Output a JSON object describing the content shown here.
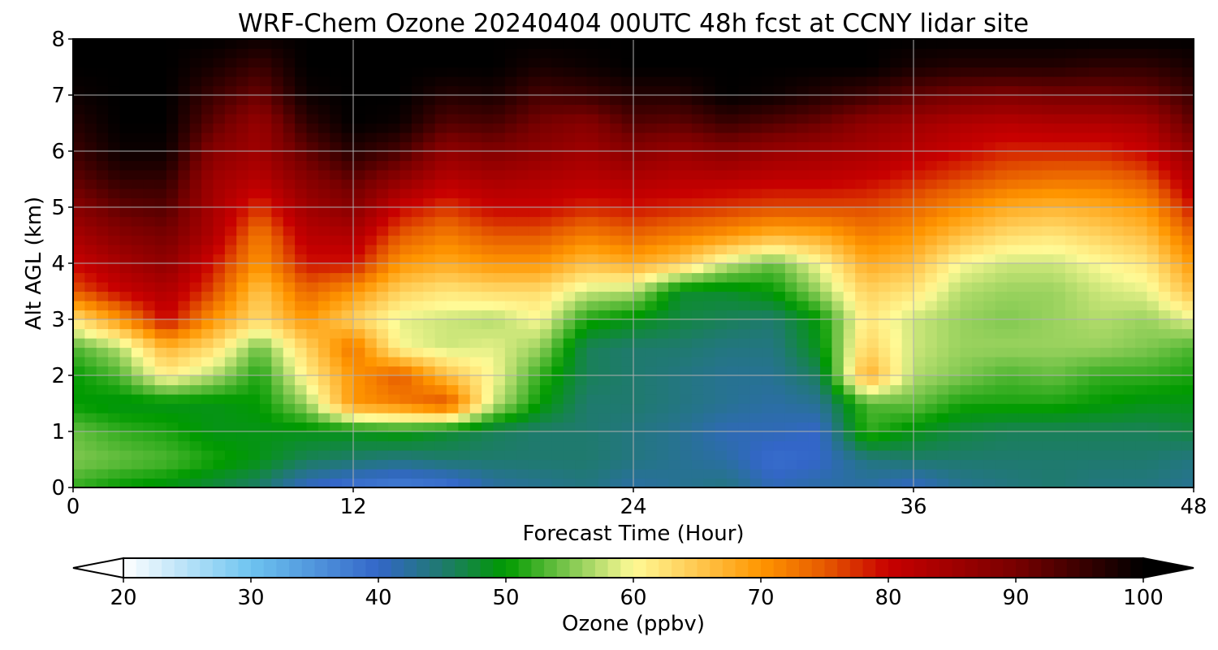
{
  "chart_data": {
    "type": "heatmap",
    "title": "WRF-Chem Ozone  20240404 00UTC 48h fcst at CCNY lidar site",
    "xlabel": "Forecast Time (Hour)",
    "ylabel": "Alt AGL (km)",
    "xlim": [
      0,
      48
    ],
    "ylim": [
      0,
      8
    ],
    "xticks": [
      0,
      12,
      24,
      36,
      48
    ],
    "yticks": [
      0,
      1,
      2,
      3,
      4,
      5,
      6,
      7,
      8
    ],
    "grid": true,
    "colorbar": {
      "label": "Ozone  (ppbv)",
      "range": [
        20,
        100
      ],
      "ticks": [
        20,
        30,
        40,
        50,
        60,
        70,
        80,
        90,
        100
      ],
      "extend": "both",
      "placement": "bottom",
      "colors": [
        {
          "value": 20,
          "color": "#ffffff"
        },
        {
          "value": 30,
          "color": "#6ec4f0"
        },
        {
          "value": 40,
          "color": "#3366c8"
        },
        {
          "value": 45,
          "color": "#1f7a6e"
        },
        {
          "value": 50,
          "color": "#009a00"
        },
        {
          "value": 55,
          "color": "#80c850"
        },
        {
          "value": 60,
          "color": "#fffa96"
        },
        {
          "value": 65,
          "color": "#ffc850"
        },
        {
          "value": 70,
          "color": "#ff9600"
        },
        {
          "value": 75,
          "color": "#e65a00"
        },
        {
          "value": 80,
          "color": "#c80000"
        },
        {
          "value": 90,
          "color": "#780000"
        },
        {
          "value": 100,
          "color": "#000000"
        }
      ]
    },
    "x": [
      0,
      2,
      4,
      6,
      8,
      10,
      12,
      14,
      16,
      18,
      20,
      22,
      24,
      26,
      28,
      30,
      32,
      34,
      36,
      38,
      40,
      42,
      44,
      46,
      48
    ],
    "y": [
      0,
      0.5,
      1,
      1.5,
      2,
      2.5,
      3,
      3.5,
      4,
      4.5,
      5,
      5.5,
      6,
      6.5,
      7,
      7.5,
      8
    ],
    "z": [
      [
        52,
        50,
        49,
        47,
        45,
        40,
        38,
        37,
        38,
        42,
        43,
        44,
        42,
        43,
        44,
        41,
        42,
        42,
        40,
        43,
        44,
        45,
        44,
        44,
        43
      ],
      [
        55,
        54,
        53,
        51,
        49,
        46,
        45,
        44,
        45,
        45,
        45,
        45,
        44,
        43,
        42,
        39,
        40,
        44,
        45,
        45,
        45,
        45,
        45,
        45,
        44
      ],
      [
        54,
        52,
        51,
        49,
        49,
        49,
        49,
        50,
        48,
        46,
        45,
        45,
        44,
        43,
        41,
        41,
        40,
        52,
        49,
        47,
        46,
        46,
        46,
        46,
        47
      ],
      [
        50,
        49,
        49,
        49,
        50,
        56,
        70,
        72,
        76,
        58,
        50,
        45,
        45,
        44,
        43,
        42,
        43,
        53,
        54,
        51,
        51,
        51,
        50,
        49,
        49
      ],
      [
        50,
        53,
        61,
        57,
        51,
        61,
        70,
        75,
        66,
        60,
        52,
        46,
        45,
        44,
        43,
        43,
        46,
        68,
        57,
        55,
        53,
        54,
        52,
        52,
        51
      ],
      [
        53,
        57,
        67,
        63,
        54,
        64,
        73,
        60,
        58,
        59,
        56,
        46,
        45,
        45,
        44,
        44,
        49,
        64,
        58,
        56,
        56,
        56,
        56,
        55,
        53
      ],
      [
        62,
        70,
        80,
        70,
        63,
        70,
        64,
        59,
        58,
        57,
        60,
        51,
        49,
        47,
        46,
        45,
        50,
        62,
        58,
        56,
        55,
        56,
        57,
        56,
        59
      ],
      [
        75,
        80,
        83,
        76,
        65,
        74,
        70,
        64,
        62,
        63,
        63,
        58,
        57,
        48,
        48,
        50,
        56,
        64,
        62,
        57,
        56,
        56,
        58,
        59,
        66
      ],
      [
        80,
        84,
        87,
        79,
        70,
        79,
        79,
        70,
        68,
        70,
        70,
        66,
        68,
        65,
        58,
        54,
        60,
        68,
        66,
        60,
        58,
        58,
        60,
        62,
        70
      ],
      [
        84,
        88,
        90,
        83,
        72,
        82,
        83,
        75,
        72,
        75,
        75,
        72,
        74,
        72,
        70,
        67,
        68,
        72,
        70,
        66,
        63,
        62,
        64,
        66,
        74
      ],
      [
        88,
        92,
        93,
        84,
        77,
        85,
        88,
        80,
        77,
        80,
        80,
        78,
        79,
        78,
        77,
        76,
        76,
        76,
        74,
        71,
        68,
        67,
        68,
        70,
        79
      ],
      [
        92,
        96,
        96,
        85,
        82,
        88,
        92,
        87,
        82,
        84,
        83,
        82,
        83,
        82,
        82,
        81,
        81,
        80,
        78,
        76,
        74,
        73,
        73,
        75,
        83
      ],
      [
        95,
        99,
        99,
        88,
        85,
        92,
        97,
        94,
        87,
        89,
        87,
        85,
        88,
        86,
        88,
        86,
        85,
        84,
        82,
        80,
        78,
        78,
        78,
        80,
        87
      ],
      [
        97,
        100,
        100,
        92,
        86,
        96,
        100,
        99,
        93,
        94,
        90,
        88,
        93,
        92,
        95,
        93,
        91,
        87,
        85,
        83,
        82,
        83,
        83,
        84,
        92
      ],
      [
        99,
        100,
        100,
        95,
        91,
        99,
        100,
        100,
        97,
        98,
        94,
        95,
        97,
        97,
        100,
        99,
        97,
        95,
        92,
        90,
        89,
        90,
        90,
        91,
        95
      ],
      [
        100,
        100,
        100,
        98,
        95,
        100,
        100,
        100,
        100,
        100,
        98,
        99,
        100,
        100,
        100,
        100,
        100,
        100,
        98,
        97,
        97,
        97,
        96,
        96,
        98
      ],
      [
        100,
        100,
        100,
        100,
        99,
        100,
        100,
        100,
        100,
        100,
        100,
        100,
        100,
        100,
        100,
        100,
        100,
        100,
        100,
        100,
        100,
        100,
        100,
        100,
        100
      ]
    ]
  }
}
